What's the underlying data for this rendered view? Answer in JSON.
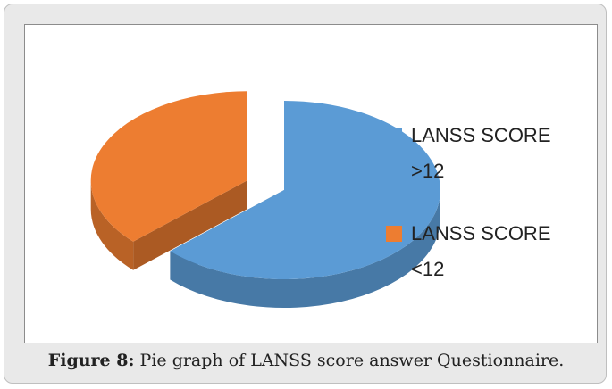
{
  "chart_data": {
    "type": "pie",
    "categories": [
      "LANSS SCORE >12",
      "LANSS SCORE <12"
    ],
    "values": [
      63,
      37
    ],
    "colors": [
      "#5b9bd5",
      "#ed7d31"
    ],
    "legend": "right"
  },
  "caption": {
    "label": "Figure 8:",
    "text": "Pie graph of LANSS score answer Questionnaire."
  }
}
